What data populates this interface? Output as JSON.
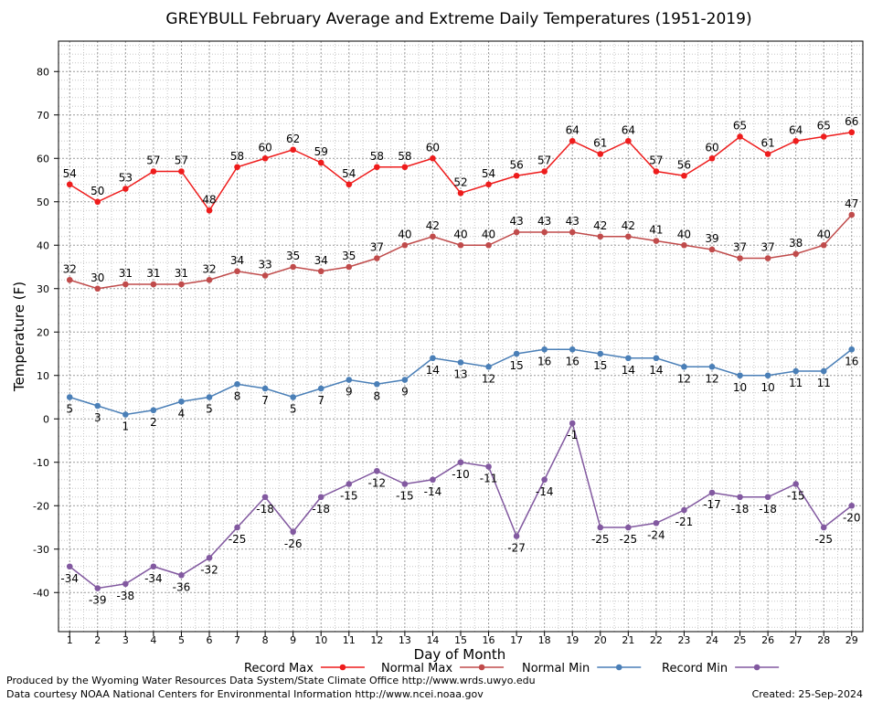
{
  "chart_data": {
    "type": "line",
    "title": "GREYBULL February Average and Extreme Daily Temperatures (1951-2019)",
    "xlabel": "Day of Month",
    "ylabel": "Temperature (F)",
    "x": [
      1,
      2,
      3,
      4,
      5,
      6,
      7,
      8,
      9,
      10,
      11,
      12,
      13,
      14,
      15,
      16,
      17,
      18,
      19,
      20,
      21,
      22,
      23,
      24,
      25,
      26,
      27,
      28,
      29
    ],
    "xlim": [
      0.6,
      29.4
    ],
    "ylim": [
      -49,
      87
    ],
    "yticks": [
      -40,
      -30,
      -20,
      -10,
      0,
      10,
      20,
      30,
      40,
      50,
      60,
      70,
      80
    ],
    "grid": true,
    "legend_position": "bottom",
    "series": [
      {
        "name": "Record Max",
        "color": "#ee1c1c",
        "label_pos": "above",
        "values": [
          54,
          50,
          53,
          57,
          57,
          48,
          58,
          60,
          62,
          59,
          54,
          58,
          58,
          60,
          52,
          54,
          56,
          57,
          64,
          61,
          64,
          57,
          56,
          60,
          65,
          61,
          64,
          65,
          66
        ]
      },
      {
        "name": "Normal Max",
        "color": "#c04b4b",
        "label_pos": "above",
        "values": [
          32,
          30,
          31,
          31,
          31,
          32,
          34,
          33,
          35,
          34,
          35,
          37,
          40,
          42,
          40,
          40,
          43,
          43,
          43,
          42,
          42,
          41,
          40,
          39,
          37,
          37,
          38,
          40,
          47
        ]
      },
      {
        "name": "Normal Min",
        "color": "#4a7fb7",
        "label_pos": "below",
        "values": [
          5,
          3,
          1,
          2,
          4,
          5,
          8,
          7,
          5,
          7,
          9,
          8,
          9,
          14,
          13,
          12,
          15,
          16,
          16,
          15,
          14,
          14,
          12,
          12,
          10,
          10,
          11,
          11,
          16
        ]
      },
      {
        "name": "Record Min",
        "color": "#8259a0",
        "label_pos": "below",
        "values": [
          -34,
          -39,
          -38,
          -34,
          -36,
          -32,
          -25,
          -18,
          -26,
          -18,
          -15,
          -12,
          -15,
          -14,
          -10,
          -11,
          -27,
          -14,
          -1,
          -25,
          -25,
          -24,
          -21,
          -17,
          -18,
          -18,
          -15,
          -25,
          -20
        ]
      }
    ]
  },
  "footer": {
    "producer": "Produced by the Wyoming Water Resources Data System/State Climate Office http://www.wrds.uwyo.edu",
    "courtesy": "Data courtesy NOAA National Centers for Environmental Information http://www.ncei.noaa.gov",
    "created": "Created:  25-Sep-2024"
  }
}
